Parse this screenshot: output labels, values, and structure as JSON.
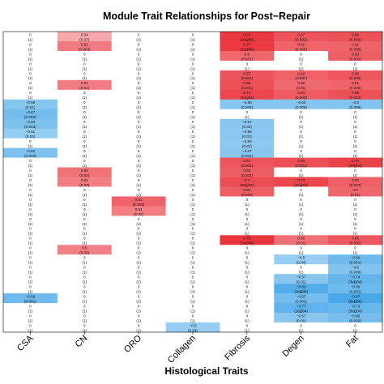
{
  "chart_data": {
    "type": "heatmap",
    "title": "Module Trait Relationships for Post−Repair",
    "xlabel": "Histological Traits",
    "ylabel": "",
    "x_categories": [
      "CSA",
      "CN",
      "ORO",
      "Collagen",
      "Fibrosis",
      "Degen",
      "Fat"
    ],
    "color_scale": {
      "min": -1,
      "max": 1,
      "negative": "#4aa8e8",
      "zero": "#ffffff",
      "positive": "#e8212a"
    },
    "rows": [
      {
        "values": [
          0,
          0.34,
          0,
          0,
          0.78,
          0.67,
          0.68
        ],
        "labels": [
          "0",
          "0.34",
          "0",
          "0",
          "0.78",
          "0.67",
          "0.68"
        ],
        "sub": [
          "(1)",
          "(0.07)",
          "(1)",
          "(1)",
          "(2e∐06)",
          "(0.002)",
          "(0.002)"
        ]
      },
      {
        "values": [
          0,
          0.52,
          0,
          0,
          0.77,
          0.61,
          0.61
        ],
        "labels": [
          "0",
          "0.52",
          "0",
          "0",
          "0.77",
          "0.61",
          "0.61"
        ],
        "sub": [
          "(1)",
          "(0.004)",
          "(1)",
          "(1)",
          "(3e∐06)",
          "(0.005)",
          "(0.005)"
        ]
      },
      {
        "values": [
          0,
          0,
          0,
          0,
          0.6,
          0,
          0.63
        ],
        "labels": [
          "0",
          "0",
          "0",
          "0",
          "0.6",
          "0",
          "0.63"
        ],
        "sub": [
          "(1)",
          "(1)",
          "(1)",
          "(1)",
          "(0.001)",
          "(1)",
          "(0.002)"
        ]
      },
      {
        "values": [
          0,
          0,
          0,
          0,
          0,
          0,
          0
        ],
        "labels": [
          "0",
          "0",
          "0",
          "0",
          "0",
          "0",
          "0"
        ],
        "sub": [
          "(1)",
          "(1)",
          "(1)",
          "(1)",
          "(1)",
          "(1)",
          "(1)"
        ]
      },
      {
        "values": [
          0,
          0,
          0,
          0,
          0.67,
          0.62,
          0.66
        ],
        "labels": [
          "0",
          "0",
          "0",
          "0",
          "0.67",
          "0.62",
          "0.66"
        ],
        "sub": [
          "(1)",
          "(1)",
          "(1)",
          "(1)",
          "(0.001)",
          "(0.007)",
          "(0.003)"
        ]
      },
      {
        "values": [
          0,
          0.51,
          0,
          0,
          0.68,
          0.58,
          0.61
        ],
        "labels": [
          "0",
          "0.51",
          "0",
          "0",
          "0.68",
          "0.58",
          "0.61"
        ],
        "sub": [
          "(1)",
          "(0.01)",
          "(1)",
          "(1)",
          "(0.001)",
          "(0.01)",
          "(0.005)"
        ]
      },
      {
        "values": [
          0,
          0,
          0,
          0,
          0.72,
          0.64,
          0.68
        ],
        "labels": [
          "0",
          "0",
          "0",
          "0",
          "0.72",
          "0.64",
          "0.68"
        ],
        "sub": [
          "(1)",
          "(1)",
          "(1)",
          "(1)",
          "(4e∐04)",
          "(0.003)",
          "(0.002)"
        ]
      },
      {
        "values": [
          -0.58,
          0,
          0,
          0,
          -0.58,
          -0.58,
          -0.6
        ],
        "labels": [
          "−0.58",
          "0",
          "0",
          "0",
          "−0.58",
          "−0.58",
          "−0.6"
        ],
        "sub": [
          "(0.01)",
          "(1)",
          "(1)",
          "(1)",
          "(0.009)",
          "(0.009)",
          "(0.009)"
        ]
      },
      {
        "values": [
          -0.67,
          0,
          0,
          0,
          0,
          0,
          0
        ],
        "labels": [
          "−0.67",
          "0",
          "0",
          "0",
          "0",
          "0",
          "0"
        ],
        "sub": [
          "(0.002)",
          "(1)",
          "(1)",
          "(1)",
          "(1)",
          "(1)",
          "(1)"
        ]
      },
      {
        "values": [
          -0.63,
          0,
          0,
          0,
          -0.57,
          0,
          0
        ],
        "labels": [
          "−0.63",
          "0",
          "0",
          "0",
          "−0.57",
          "0",
          "0"
        ],
        "sub": [
          "(0.003)",
          "(1)",
          "(1)",
          "(1)",
          "(0.01)",
          "(1)",
          "(1)"
        ]
      },
      {
        "values": [
          -0.51,
          0,
          0,
          0,
          -0.56,
          0,
          0
        ],
        "labels": [
          "−0.51",
          "0",
          "0",
          "0",
          "−0.56",
          "0",
          "0"
        ],
        "sub": [
          "(0.03)",
          "(1)",
          "(1)",
          "(1)",
          "(0.01)",
          "(1)",
          "(1)"
        ]
      },
      {
        "values": [
          0,
          0,
          0,
          0,
          -0.55,
          0,
          0
        ],
        "labels": [
          "0",
          "0",
          "0",
          "0",
          "−0.55",
          "0",
          "0"
        ],
        "sub": [
          "(1)",
          "(1)",
          "(1)",
          "(1)",
          "(0.01)",
          "(1)",
          "(1)"
        ]
      },
      {
        "values": [
          -0.62,
          0,
          0,
          0,
          -0.57,
          0,
          0
        ],
        "labels": [
          "−0.62",
          "0",
          "0",
          "0",
          "−0.57",
          "0",
          "0"
        ],
        "sub": [
          "(0.003)",
          "(1)",
          "(1)",
          "(1)",
          "(0.002)",
          "(1)",
          "(1)"
        ]
      },
      {
        "values": [
          0,
          0,
          0,
          0,
          0.67,
          0.69,
          0.74
        ],
        "labels": [
          "0",
          "0",
          "0",
          "0",
          "0.67",
          "0.69",
          "0.74"
        ],
        "sub": [
          "(1)",
          "(1)",
          "(1)",
          "(1)",
          "(0.002)",
          "(0.001)",
          "(3e∐04)"
        ]
      },
      {
        "values": [
          0,
          0.55,
          0,
          0,
          0.63,
          0,
          0
        ],
        "labels": [
          "0",
          "0.55",
          "0",
          "0",
          "0.63",
          "0",
          "0"
        ],
        "sub": [
          "(1)",
          "(0.02)",
          "(1)",
          "(1)",
          "(0.004)",
          "(1)",
          "(1)"
        ]
      },
      {
        "values": [
          0,
          0.51,
          0,
          0,
          0.7,
          0.73,
          0.62
        ],
        "labels": [
          "0",
          "0.51",
          "0",
          "0",
          "0.7",
          "0.73",
          "0.62"
        ],
        "sub": [
          "(1)",
          "(0.03)",
          "(1)",
          "(1)",
          "(9e∐04)",
          "(4e∐04)",
          "(0.004)"
        ]
      },
      {
        "values": [
          0,
          0,
          0,
          0,
          0.63,
          0,
          0.6
        ],
        "labels": [
          "0",
          "0",
          "0",
          "0",
          "0.63",
          "0",
          "0.6"
        ],
        "sub": [
          "(1)",
          "(1)",
          "(1)",
          "(1)",
          "(0.006)",
          "(1)",
          "(0.01)"
        ]
      },
      {
        "values": [
          0,
          0,
          0.61,
          0,
          0,
          0,
          0
        ],
        "labels": [
          "0",
          "0",
          "0.61",
          "0",
          "0",
          "0",
          "0"
        ],
        "sub": [
          "(1)",
          "(1)",
          "(0.005)",
          "(1)",
          "(1)",
          "(1)",
          "(1)"
        ]
      },
      {
        "values": [
          0,
          0,
          0.51,
          0,
          0,
          0,
          0
        ],
        "labels": [
          "0",
          "0",
          "0.51",
          "0",
          "0",
          "0",
          "0"
        ],
        "sub": [
          "(1)",
          "(1)",
          "(0.02)",
          "(1)",
          "(1)",
          "(1)",
          "(1)"
        ]
      },
      {
        "values": [
          0,
          0,
          0,
          0,
          0,
          0,
          0
        ],
        "labels": [
          "0",
          "0",
          "0",
          "0",
          "0",
          "0",
          "0"
        ],
        "sub": [
          "(1)",
          "(1)",
          "(1)",
          "(1)",
          "(1)",
          "(1)",
          "(1)"
        ]
      },
      {
        "values": [
          0,
          0,
          0,
          0,
          0,
          0,
          0
        ],
        "labels": [
          "0",
          "0",
          "0",
          "0",
          "0",
          "0",
          "0"
        ],
        "sub": [
          "(1)",
          "(1)",
          "(1)",
          "(1)",
          "(1)",
          "(1)",
          "(1)"
        ]
      },
      {
        "values": [
          0,
          0,
          0,
          0,
          0.79,
          0.56,
          0.66
        ],
        "labels": [
          "0",
          "0",
          "0",
          "0",
          "0.79",
          "0.56",
          "0.66"
        ],
        "sub": [
          "(1)",
          "(1)",
          "(1)",
          "(1)",
          "(1e∐06)",
          "(0.01)",
          "(0.002)"
        ]
      },
      {
        "values": [
          0,
          0.5,
          0,
          0,
          0,
          0,
          0
        ],
        "labels": [
          "0",
          "0.5",
          "0",
          "0",
          "0",
          "0",
          "0"
        ],
        "sub": [
          "(1)",
          "(0.03)",
          "(1)",
          "(1)",
          "(1)",
          "(1)",
          "(1)"
        ]
      },
      {
        "values": [
          0,
          0,
          0,
          0,
          0,
          -0.5,
          -0.69
        ],
        "labels": [
          "0",
          "0",
          "0",
          "0",
          "0",
          "−0.5",
          "−0.69"
        ],
        "sub": [
          "(1)",
          "(1)",
          "(1)",
          "(1)",
          "(1)",
          "(0.04)",
          "(0.001)"
        ]
      },
      {
        "values": [
          0,
          0,
          0,
          0,
          0,
          0,
          -0.6
        ],
        "labels": [
          "0",
          "0",
          "0",
          "0",
          "0",
          "0",
          "−0.6"
        ],
        "sub": [
          "(1)",
          "(1)",
          "(1)",
          "(1)",
          "(1)",
          "(1)",
          "(0.008)"
        ]
      },
      {
        "values": [
          0,
          0,
          0,
          0,
          0,
          -0.57,
          -0.74
        ],
        "labels": [
          "0",
          "0",
          "0",
          "0",
          "0",
          "−0.57",
          "−0.74"
        ],
        "sub": [
          "(1)",
          "(1)",
          "(1)",
          "(1)",
          "(1)",
          "(0.01)",
          "(3e∐04)"
        ]
      },
      {
        "values": [
          0,
          0,
          0,
          0,
          0,
          -0.82,
          -0.69
        ],
        "labels": [
          "0",
          "0",
          "0",
          "0",
          "0",
          "−0.82",
          "−0.69"
        ],
        "sub": [
          "(1)",
          "(1)",
          "(1)",
          "(1)",
          "(1)",
          "(3e∐05)",
          "(0.001)"
        ]
      },
      {
        "values": [
          -0.69,
          0,
          0,
          0,
          0,
          -0.67,
          -0.87
        ],
        "labels": [
          "−0.69",
          "0",
          "0",
          "0",
          "0",
          "−0.67",
          "−0.87"
        ],
        "sub": [
          "(0.001)",
          "(1)",
          "(1)",
          "(1)",
          "(1)",
          "(0.002)",
          "(8e∐06)"
        ]
      },
      {
        "values": [
          0,
          0,
          0,
          0,
          0,
          -0.77,
          -0.73
        ],
        "labels": [
          "0",
          "0",
          "0",
          "0",
          "0",
          "−0.77",
          "−0.73"
        ],
        "sub": [
          "(1)",
          "(1)",
          "(1)",
          "(1)",
          "(1)",
          "(1e∐04)",
          "(5e∐04)"
        ]
      },
      {
        "values": [
          0,
          0,
          0,
          0,
          0,
          -0.57,
          -0.66
        ],
        "labels": [
          "0",
          "0",
          "0",
          "0",
          "0",
          "−0.57",
          "−0.66"
        ],
        "sub": [
          "(1)",
          "(1)",
          "(1)",
          "(1)",
          "(1)",
          "(0.01)",
          "(0.002)"
        ]
      },
      {
        "values": [
          0,
          0,
          0,
          -0.5,
          0,
          0,
          0
        ],
        "labels": [
          "0",
          "0",
          "0",
          "−0.5",
          "0",
          "0",
          "0"
        ],
        "sub": [
          "(1)",
          "(1)",
          "(1)",
          "(0.03)",
          "(1)",
          "(1)",
          "(1)"
        ]
      }
    ]
  }
}
